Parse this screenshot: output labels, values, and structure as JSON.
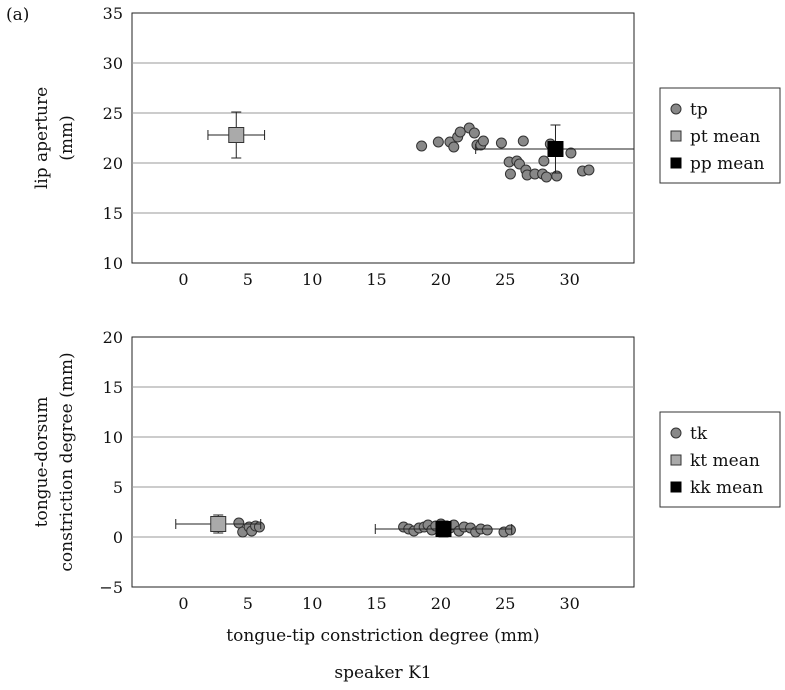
{
  "panel_label": "(a)",
  "xlabel": "tongue-tip constriction degree (mm)",
  "footer": "speaker K1",
  "chart_data": [
    {
      "type": "scatter",
      "xlabel": "tongue-tip constriction degree (mm)",
      "ylabel": [
        "lip aperture",
        "(mm)"
      ],
      "xlim": [
        -4,
        35
      ],
      "ylim": [
        10,
        35
      ],
      "xticks": [
        0,
        5,
        10,
        15,
        20,
        25,
        30
      ],
      "yticks": [
        10,
        15,
        20,
        25,
        30,
        35
      ],
      "grid": "horizontal",
      "legend_position": "right",
      "legend": [
        "tp",
        "pt mean",
        "pp mean"
      ],
      "series": [
        {
          "name": "tp",
          "marker": "circle",
          "color": "#888888",
          "points": [
            [
              18.5,
              21.7
            ],
            [
              19.8,
              22.1
            ],
            [
              20.7,
              22.1
            ],
            [
              21.0,
              21.6
            ],
            [
              21.3,
              22.6
            ],
            [
              21.5,
              23.1
            ],
            [
              22.2,
              23.5
            ],
            [
              22.6,
              23.0
            ],
            [
              22.8,
              21.8
            ],
            [
              23.1,
              21.8
            ],
            [
              23.3,
              22.2
            ],
            [
              24.7,
              22.0
            ],
            [
              25.3,
              20.1
            ],
            [
              25.4,
              18.9
            ],
            [
              25.9,
              20.2
            ],
            [
              26.1,
              19.9
            ],
            [
              26.4,
              22.2
            ],
            [
              26.6,
              19.3
            ],
            [
              26.7,
              18.8
            ],
            [
              27.3,
              18.9
            ],
            [
              27.9,
              18.9
            ],
            [
              28.0,
              20.2
            ],
            [
              28.2,
              18.6
            ],
            [
              28.5,
              21.9
            ],
            [
              29.0,
              18.7
            ],
            [
              30.1,
              21.0
            ],
            [
              31.0,
              19.2
            ],
            [
              31.5,
              19.3
            ]
          ]
        },
        {
          "name": "pt mean",
          "marker": "square",
          "color": "#aaaaaa",
          "points": [
            [
              4.1,
              22.8
            ]
          ],
          "xerr": [
            2.2
          ],
          "yerr": [
            2.3
          ]
        },
        {
          "name": "pp mean",
          "marker": "square",
          "color": "#000000",
          "points": [
            [
              28.9,
              21.4
            ]
          ],
          "xerr": [
            6.2
          ],
          "yerr": [
            2.4
          ]
        }
      ]
    },
    {
      "type": "scatter",
      "xlabel": "tongue-tip constriction degree (mm)",
      "ylabel": [
        "tongue-dorsum",
        "constriction degree (mm)"
      ],
      "xlim": [
        -4,
        35
      ],
      "ylim": [
        -5,
        20
      ],
      "xticks": [
        0,
        5,
        10,
        15,
        20,
        25,
        30
      ],
      "yticks": [
        -5,
        0,
        5,
        10,
        15,
        20
      ],
      "ytick_labels": [
        "−5",
        "0",
        "5",
        "10",
        "15",
        "20"
      ],
      "grid": "horizontal",
      "legend_position": "right",
      "legend": [
        "tk",
        "kt mean",
        "kk mean"
      ],
      "series": [
        {
          "name": "tk",
          "marker": "circle",
          "color": "#888888",
          "points": [
            [
              4.3,
              1.4
            ],
            [
              4.6,
              0.5
            ],
            [
              5.1,
              1.0
            ],
            [
              5.3,
              0.6
            ],
            [
              5.6,
              1.1
            ],
            [
              5.9,
              1.0
            ],
            [
              17.1,
              1.0
            ],
            [
              17.5,
              0.8
            ],
            [
              17.9,
              0.6
            ],
            [
              18.3,
              0.9
            ],
            [
              18.7,
              1.0
            ],
            [
              19.0,
              1.2
            ],
            [
              19.3,
              0.7
            ],
            [
              19.6,
              1.1
            ],
            [
              20.0,
              1.3
            ],
            [
              20.3,
              0.7
            ],
            [
              20.7,
              0.9
            ],
            [
              21.0,
              1.2
            ],
            [
              21.4,
              0.6
            ],
            [
              21.8,
              1.0
            ],
            [
              22.3,
              0.9
            ],
            [
              22.7,
              0.5
            ],
            [
              23.1,
              0.8
            ],
            [
              23.6,
              0.7
            ],
            [
              24.9,
              0.5
            ],
            [
              25.4,
              0.7
            ]
          ]
        },
        {
          "name": "kt mean",
          "marker": "square",
          "color": "#aaaaaa",
          "points": [
            [
              2.7,
              1.3
            ]
          ],
          "xerr": [
            3.3
          ],
          "yerr": [
            0.9
          ]
        },
        {
          "name": "kk mean",
          "marker": "square",
          "color": "#000000",
          "points": [
            [
              20.2,
              0.8
            ]
          ],
          "xerr": [
            5.3
          ],
          "yerr": [
            0.8
          ]
        }
      ]
    }
  ]
}
